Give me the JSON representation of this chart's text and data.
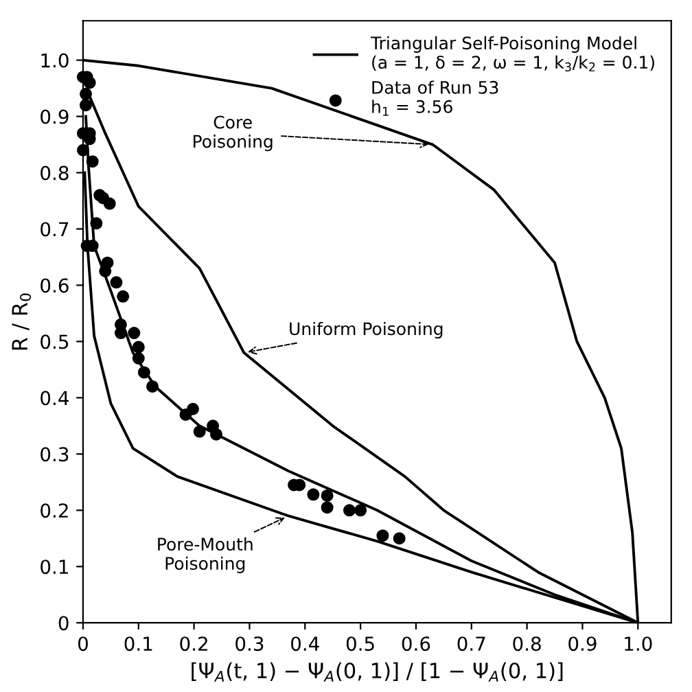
{
  "chart_data": {
    "type": "line",
    "xlabel": "[Ψ$_{A}$(t, 1) − Ψ$_{A}$(0, 1)] / [1 − Ψ$_{A}$(0, 1)]",
    "ylabel": "R / R$_{0}$",
    "xlim": [
      0,
      1.06
    ],
    "ylim": [
      0,
      1.07
    ],
    "xticks": [
      {
        "value": 0,
        "label": "0"
      },
      0.1,
      0.2,
      0.3,
      0.4,
      0.5,
      0.6,
      0.7,
      0.8,
      0.9,
      {
        "value": 1,
        "label": "1.0"
      }
    ],
    "yticks": [
      {
        "value": 0,
        "label": "0"
      },
      0.1,
      0.2,
      0.3,
      0.4,
      0.5,
      0.6,
      0.7,
      0.8,
      0.9,
      {
        "value": 1,
        "label": "1.0"
      }
    ],
    "grid": false,
    "legend": "top right",
    "series": [
      {
        "name": "Triangular Self-Poisoning Model\n(a = 1, δ = 2, ω = 1, k$_{3}$/k$_{2}$ = 0.1)",
        "color": "#000000",
        "marker": "none",
        "x": [
          0.005,
          0.01,
          0.02,
          0.05,
          0.09,
          0.13,
          0.21,
          0.37,
          0.53,
          0.7,
          0.85,
          1.0
        ],
        "values": [
          0.9,
          0.81,
          0.67,
          0.59,
          0.48,
          0.42,
          0.35,
          0.27,
          0.2,
          0.11,
          0.05,
          0
        ]
      },
      {
        "color": "#000000",
        "marker": "none",
        "x": [
          0,
          0.1,
          0.34,
          0.63,
          0.74,
          0.85,
          0.89,
          0.94,
          0.97,
          0.99,
          1.0
        ],
        "values": [
          1.0,
          0.99,
          0.95,
          0.85,
          0.77,
          0.64,
          0.5,
          0.4,
          0.31,
          0.16,
          0
        ]
      },
      {
        "color": "#000000",
        "marker": "none",
        "x": [
          0.01,
          0.04,
          0.1,
          0.21,
          0.29,
          0.45,
          0.58,
          0.65,
          0.82,
          1.0
        ],
        "values": [
          0.94,
          0.87,
          0.74,
          0.63,
          0.48,
          0.35,
          0.26,
          0.2,
          0.09,
          0
        ]
      },
      {
        "color": "#000000",
        "marker": "none",
        "x": [
          0.003,
          0.008,
          0.02,
          0.05,
          0.09,
          0.17,
          0.37,
          0.53,
          0.7,
          1.0
        ],
        "values": [
          0.8,
          0.67,
          0.51,
          0.39,
          0.31,
          0.26,
          0.19,
          0.145,
          0.09,
          0
        ]
      },
      {
        "name": "Data of Run 53\nh$_{1}$ = 3.56",
        "color": "#000000",
        "type": "scatter",
        "marker": "circle",
        "x": [
          0,
          0.007,
          0.012,
          0.005,
          0.005,
          0,
          0.012,
          0,
          0.012,
          0.017,
          0.03,
          0.036,
          0.048,
          0.024,
          0.007,
          0.017,
          0.044,
          0.04,
          0.06,
          0.072,
          0.068,
          0.068,
          0.092,
          0.1,
          0.1,
          0.11,
          0.125,
          0.185,
          0.198,
          0.21,
          0.234,
          0.24,
          0.38,
          0.39,
          0.415,
          0.44,
          0.44,
          0.48,
          0.5,
          0.54,
          0.57
        ],
        "values": [
          0.97,
          0.97,
          0.96,
          0.94,
          0.92,
          0.87,
          0.87,
          0.84,
          0.86,
          0.82,
          0.76,
          0.755,
          0.745,
          0.71,
          0.67,
          0.67,
          0.64,
          0.625,
          0.605,
          0.58,
          0.53,
          0.515,
          0.515,
          0.49,
          0.47,
          0.445,
          0.42,
          0.37,
          0.38,
          0.34,
          0.35,
          0.335,
          0.245,
          0.245,
          0.228,
          0.226,
          0.205,
          0.2,
          0.2,
          0.155,
          0.15
        ]
      }
    ],
    "annotations": [
      {
        "text": "Core\nPoisoning",
        "x": 0.63,
        "y": 0.85
      },
      {
        "text": "Uniform Poisoning",
        "x": 0.29,
        "y": 0.48
      },
      {
        "text": "Pore-Mouth\nPoisoning",
        "x": 0.37,
        "y": 0.19
      }
    ]
  }
}
